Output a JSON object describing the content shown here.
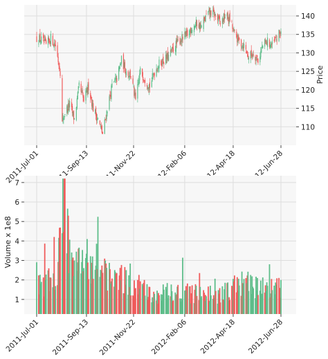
{
  "chart_data": [
    {
      "type": "candlestick",
      "ylabel": "Price",
      "ylim": [
        105,
        143
      ],
      "y_ticks": [
        "110",
        "115",
        "120",
        "125",
        "130",
        "135",
        "140"
      ],
      "x_ticks": [
        "2011-Jul-01",
        "2011-Sep-13",
        "2011-Nov-22",
        "2012-Feb-06",
        "2012-Apr-18",
        "2012-Jun-28"
      ],
      "close_path_dates": [
        "2011-07-01",
        "2011-07-08",
        "2011-07-15",
        "2011-07-22",
        "2011-07-29",
        "2011-08-05",
        "2011-08-08",
        "2011-08-12",
        "2011-08-19",
        "2011-08-26",
        "2011-09-02",
        "2011-09-09",
        "2011-09-16",
        "2011-09-23",
        "2011-09-30",
        "2011-10-07",
        "2011-10-14",
        "2011-10-21",
        "2011-10-28",
        "2011-11-04",
        "2011-11-11",
        "2011-11-18",
        "2011-11-25",
        "2011-12-02",
        "2011-12-09",
        "2011-12-16",
        "2011-12-23",
        "2011-12-30",
        "2012-01-06",
        "2012-01-13",
        "2012-01-20",
        "2012-01-27",
        "2012-02-03",
        "2012-02-10",
        "2012-02-17",
        "2012-02-24",
        "2012-03-02",
        "2012-03-09",
        "2012-03-16",
        "2012-03-23",
        "2012-03-30",
        "2012-04-06",
        "2012-04-13",
        "2012-04-20",
        "2012-04-27",
        "2012-05-04",
        "2012-05-11",
        "2012-05-18",
        "2012-05-25",
        "2012-06-01",
        "2012-06-08",
        "2012-06-15",
        "2012-06-22",
        "2012-06-28"
      ],
      "close_path_values": [
        134,
        133.5,
        132,
        134,
        132,
        125,
        111,
        114,
        116,
        112,
        121,
        117,
        121,
        115,
        112,
        108,
        115,
        121,
        123,
        128,
        125,
        124,
        117,
        125,
        123,
        121,
        125,
        127,
        128,
        129,
        131,
        133,
        134,
        135,
        137,
        138,
        137,
        140,
        141,
        140,
        138,
        140,
        139,
        135,
        133,
        132,
        129,
        130,
        128,
        132,
        133,
        132,
        134,
        136
      ]
    },
    {
      "type": "bar",
      "ylabel": "Volume x 1e8",
      "ylim": [
        0.25,
        7.35
      ],
      "y_ticks": [
        "1",
        "2",
        "3",
        "4",
        "5",
        "6",
        "7"
      ],
      "x_ticks": [
        "2011-Jul-01",
        "2011-Sep-13",
        "2011-Nov-22",
        "2012-Feb-06",
        "2012-Apr-18",
        "2012-Jun-28"
      ],
      "volume_path_dates": [
        "2011-07-01",
        "2011-07-15",
        "2011-07-29",
        "2011-08-05",
        "2011-08-08",
        "2011-08-10",
        "2011-08-19",
        "2011-08-26",
        "2011-09-09",
        "2011-09-16",
        "2011-09-23",
        "2011-09-30",
        "2011-10-07",
        "2011-10-14",
        "2011-10-28",
        "2011-11-11",
        "2011-11-25",
        "2011-12-09",
        "2011-12-23",
        "2012-01-06",
        "2012-01-20",
        "2012-02-03",
        "2012-02-17",
        "2012-03-02",
        "2012-03-16",
        "2012-03-30",
        "2012-04-13",
        "2012-04-27",
        "2012-05-11",
        "2012-05-25",
        "2012-06-08",
        "2012-06-28"
      ],
      "volume_path_values": [
        1.6,
        1.9,
        2.2,
        3.8,
        6.5,
        7.2,
        3.4,
        2.9,
        3.0,
        3.2,
        2.6,
        3.9,
        2.9,
        2.3,
        2.1,
        2.0,
        1.8,
        1.7,
        1.0,
        1.4,
        1.3,
        1.5,
        1.3,
        1.4,
        1.3,
        1.2,
        1.5,
        2.0,
        1.8,
        1.7,
        1.5,
        1.6
      ]
    }
  ],
  "colors": {
    "up": "#5ebd8a",
    "down": "#f05a5a",
    "plot_bg": "#f7f7f7",
    "grid": "#dddddd"
  }
}
